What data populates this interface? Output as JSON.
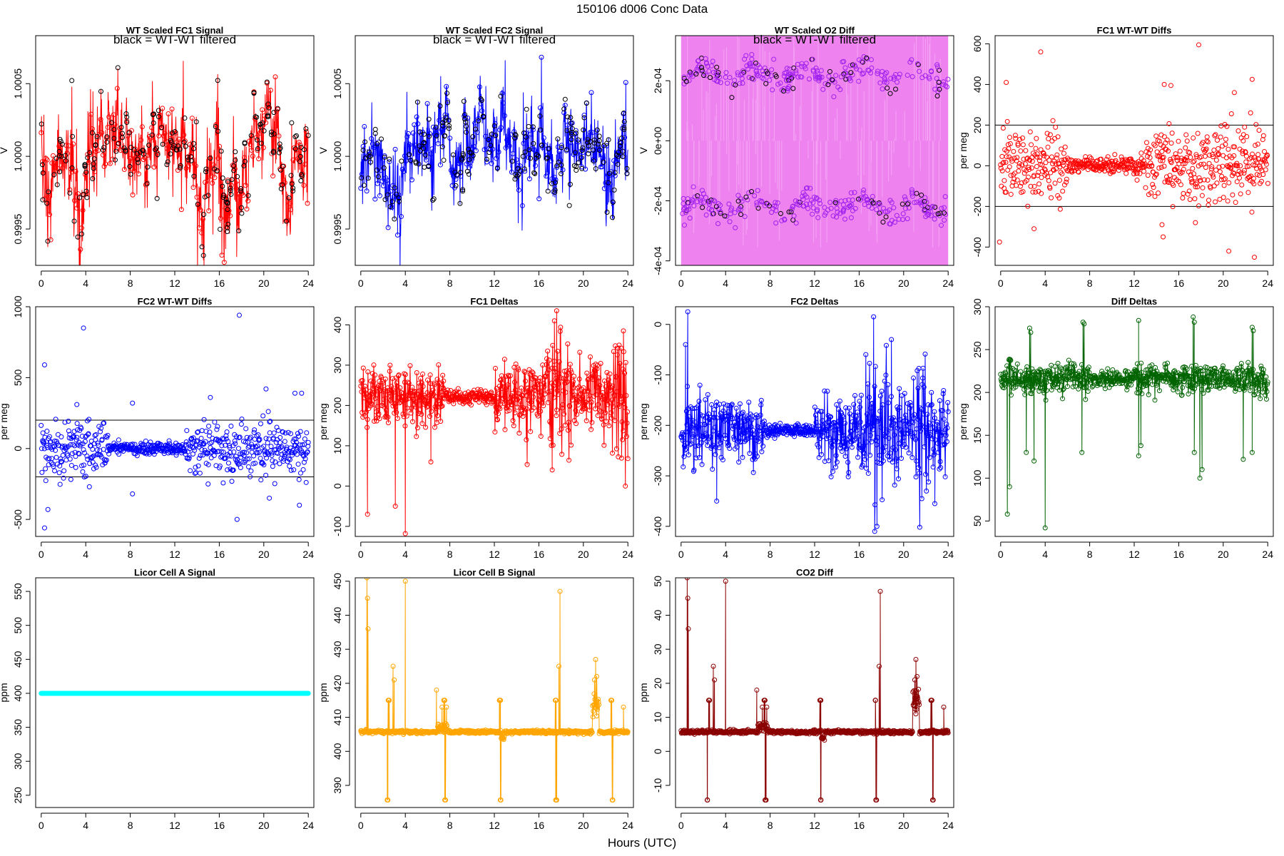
{
  "figure": {
    "suptitle": "150106   d006   Conc Data",
    "xlabel": "Hours (UTC)"
  },
  "chart_data": [
    {
      "id": "p1",
      "type": "line",
      "title": "WT Scaled FC1 Signal",
      "ylabel": "V",
      "annotation": "black = WT-WT filtered",
      "xlim": [
        -0.5,
        24.5
      ],
      "ylim": [
        0.99925,
        1.00083
      ],
      "xticks": [
        0,
        4,
        8,
        12,
        16,
        20,
        24
      ],
      "xtick_labels": [
        "0",
        "4",
        "8",
        "12",
        "16",
        "20",
        "24"
      ],
      "yticks": [
        0.9995,
        1.0,
        1.0005
      ],
      "ytick_labels": [
        "0.9995",
        "1.0000",
        "1.0005"
      ],
      "color": "#ff0000",
      "marker_color": "#000000",
      "series_spec": {
        "kind": "signal",
        "n": 900,
        "base": 1.0001,
        "noise": 0.00011,
        "seed": 11,
        "dips": [
          [
            0.6,
            -0.0003,
            0.4
          ],
          [
            2.7,
            -0.0004,
            0.6
          ],
          [
            3.5,
            -0.0005,
            0.4
          ],
          [
            14.5,
            -0.00045,
            0.4
          ],
          [
            16.6,
            -0.0004,
            0.6
          ],
          [
            17.8,
            -0.0005,
            0.5
          ],
          [
            22.2,
            -0.0003,
            0.5
          ]
        ],
        "markers": 220,
        "marker_stride": 4
      }
    },
    {
      "id": "p2",
      "type": "line",
      "title": "WT Scaled FC2 Signal",
      "ylabel": "V",
      "annotation": "black = WT-WT filtered",
      "xlim": [
        -0.5,
        24.5
      ],
      "ylim": [
        0.99925,
        1.00083
      ],
      "xticks": [
        0,
        4,
        8,
        12,
        16,
        20,
        24
      ],
      "xtick_labels": [
        "0",
        "4",
        "8",
        "12",
        "16",
        "20",
        "24"
      ],
      "yticks": [
        0.9995,
        1.0,
        1.0005
      ],
      "ytick_labels": [
        "0.9995",
        "1.0000",
        "1.0005"
      ],
      "color": "#0000ff",
      "marker_color": "#000000",
      "series_spec": {
        "kind": "signal",
        "n": 900,
        "base": 1.0001,
        "noise": 0.0001,
        "seed": 23,
        "dips": [
          [
            0.4,
            -0.0003,
            0.5
          ],
          [
            2.6,
            -0.0004,
            0.6
          ],
          [
            3.5,
            -0.0005,
            0.4
          ],
          [
            14.2,
            -0.0003,
            0.5
          ],
          [
            17.2,
            -0.0004,
            0.6
          ],
          [
            22.5,
            -0.0003,
            0.4
          ]
        ],
        "markers": 220,
        "marker_stride": 4
      }
    },
    {
      "id": "p3",
      "type": "band",
      "title": "WT Scaled O2 Diff",
      "ylabel": "V",
      "annotation": "black = WT-WT filtered",
      "xlim": [
        -0.5,
        24.5
      ],
      "ylim": [
        -0.000415,
        0.00035
      ],
      "xticks": [
        0,
        4,
        8,
        12,
        16,
        20,
        24
      ],
      "xtick_labels": [
        "0",
        "4",
        "8",
        "12",
        "16",
        "20",
        "24"
      ],
      "yticks": [
        -0.0004,
        -0.0002,
        0.0,
        0.0002
      ],
      "ytick_labels": [
        "-4e-04",
        "-2e-04",
        "0e+00",
        "2e-04"
      ],
      "color": "#ee82ee",
      "marker_color": "#a020f0",
      "series_spec": {
        "kind": "band",
        "upper": 0.00022,
        "lower": -0.00022,
        "spread": 4e-05,
        "seed": 37,
        "markers": 520
      }
    },
    {
      "id": "p4",
      "type": "scatter",
      "title": "FC1 WT-WT Diffs",
      "ylabel": "per meg",
      "xlim": [
        -0.5,
        24.5
      ],
      "ylim": [
        -490,
        640
      ],
      "xticks": [
        0,
        4,
        8,
        12,
        16,
        20,
        24
      ],
      "xtick_labels": [
        "0",
        "4",
        "8",
        "12",
        "16",
        "20",
        "24"
      ],
      "yticks": [
        -400,
        -200,
        0,
        200,
        400,
        600
      ],
      "ytick_labels": [
        "-400",
        "-200",
        "0",
        "200",
        "400",
        "600"
      ],
      "hlines": [
        200,
        -200
      ],
      "color": "#ff0000",
      "series_spec": {
        "kind": "scatter",
        "n": 640,
        "seed": 41,
        "calm": [
          6,
          13
        ],
        "sd_calm": 22,
        "sd_noisy": 85,
        "outliers": [
          [
            0.5,
            410
          ],
          [
            3.6,
            560
          ],
          [
            17.8,
            595
          ],
          [
            14.7,
            400
          ],
          [
            15.3,
            395
          ],
          [
            21.0,
            360
          ],
          [
            22.6,
            425
          ],
          [
            -0.1,
            -375
          ],
          [
            3.0,
            -310
          ],
          [
            14.5,
            -290
          ],
          [
            14.6,
            -350
          ],
          [
            20.5,
            -420
          ],
          [
            22.8,
            -450
          ],
          [
            17.5,
            -280
          ]
        ]
      }
    },
    {
      "id": "p5",
      "type": "scatter",
      "title": "FC2 WT-WT Diffs",
      "ylabel": "per meg",
      "xlim": [
        -0.5,
        24.5
      ],
      "ylim": [
        -620,
        1000
      ],
      "xticks": [
        0,
        4,
        8,
        12,
        16,
        20,
        24
      ],
      "xtick_labels": [
        "0",
        "4",
        "8",
        "12",
        "16",
        "20",
        "24"
      ],
      "yticks": [
        -500,
        0,
        500,
        1000
      ],
      "ytick_labels": [
        "-500",
        "0",
        "500",
        "1000"
      ],
      "hlines": [
        200,
        -200
      ],
      "color": "#0000ff",
      "series_spec": {
        "kind": "scatter",
        "n": 640,
        "seed": 53,
        "calm": [
          6,
          13
        ],
        "sd_calm": 22,
        "sd_noisy": 95,
        "outliers": [
          [
            0.3,
            590
          ],
          [
            3.8,
            850
          ],
          [
            17.8,
            940
          ],
          [
            8.2,
            320
          ],
          [
            3.2,
            310
          ],
          [
            15.2,
            360
          ],
          [
            20.2,
            420
          ],
          [
            22.8,
            390
          ],
          [
            23.4,
            390
          ],
          [
            0.3,
            -560
          ],
          [
            17.6,
            -500
          ],
          [
            0.6,
            -430
          ],
          [
            8.2,
            -320
          ],
          [
            20.5,
            -350
          ],
          [
            23.2,
            -400
          ]
        ]
      }
    },
    {
      "id": "p6",
      "type": "linepoints",
      "title": "FC1 Deltas",
      "ylabel": "per meg",
      "xlim": [
        -0.5,
        24.5
      ],
      "ylim": [
        -125,
        445
      ],
      "xticks": [
        0,
        4,
        8,
        12,
        16,
        20,
        24
      ],
      "xtick_labels": [
        "0",
        "4",
        "8",
        "12",
        "16",
        "20",
        "24"
      ],
      "yticks": [
        -100,
        0,
        100,
        200,
        300,
        400
      ],
      "ytick_labels": [
        "-100",
        "0",
        "100",
        "200",
        "300",
        "400"
      ],
      "color": "#ff0000",
      "series_spec": {
        "kind": "noisy",
        "n": 640,
        "base": 222,
        "seed": 61,
        "calm": [
          7.5,
          12
        ],
        "sd_calm": 8,
        "sd_noisy": 42,
        "sd_very": 75,
        "very": [
          [
            16.5,
            19
          ],
          [
            22.5,
            24
          ]
        ],
        "outliers": [
          [
            4.0,
            -118
          ],
          [
            0.6,
            -70
          ],
          [
            3.1,
            -50
          ],
          [
            6.3,
            60
          ],
          [
            17.6,
            435
          ],
          [
            17.4,
            410
          ],
          [
            23.6,
            385
          ],
          [
            17.2,
            40
          ]
        ]
      }
    },
    {
      "id": "p7",
      "type": "linepoints",
      "title": "FC2 Deltas",
      "ylabel": "per meg",
      "xlim": [
        -0.5,
        24.5
      ],
      "ylim": [
        -420,
        35
      ],
      "xticks": [
        0,
        4,
        8,
        12,
        16,
        20,
        24
      ],
      "xtick_labels": [
        "0",
        "4",
        "8",
        "12",
        "16",
        "20",
        "24"
      ],
      "yticks": [
        -400,
        -300,
        -200,
        -100,
        0
      ],
      "ytick_labels": [
        "-400",
        "-300",
        "-200",
        "-100",
        "0"
      ],
      "color": "#0000ff",
      "series_spec": {
        "kind": "noisy",
        "n": 640,
        "base": -210,
        "seed": 71,
        "calm": [
          7.5,
          12
        ],
        "sd_calm": 7,
        "sd_noisy": 38,
        "sd_very": 70,
        "very": [
          [
            16.5,
            19.5
          ],
          [
            21,
            22
          ]
        ],
        "outliers": [
          [
            0.6,
            25
          ],
          [
            0.4,
            -40
          ],
          [
            17.3,
            15
          ],
          [
            18.9,
            -30
          ],
          [
            17.4,
            -410
          ],
          [
            17.6,
            -400
          ],
          [
            3.2,
            -350
          ],
          [
            22.8,
            -355
          ]
        ]
      }
    },
    {
      "id": "p8",
      "type": "linepoints",
      "title": "Diff Deltas",
      "ylabel": "per meg",
      "xlim": [
        -0.5,
        24.5
      ],
      "ylim": [
        32,
        300
      ],
      "xticks": [
        0,
        4,
        8,
        12,
        16,
        20,
        24
      ],
      "xtick_labels": [
        "0",
        "4",
        "8",
        "12",
        "16",
        "20",
        "24"
      ],
      "yticks": [
        50,
        100,
        150,
        200,
        250,
        300
      ],
      "ytick_labels": [
        "50",
        "100",
        "150",
        "200",
        "250",
        "300"
      ],
      "color": "#006400",
      "series_spec": {
        "kind": "noisy",
        "n": 640,
        "base": 216,
        "seed": 83,
        "calm": [
          8,
          12
        ],
        "sd_calm": 5,
        "sd_noisy": 9,
        "sd_very": 12,
        "very": [],
        "spikes": [
          [
            2.6,
            275
          ],
          [
            2.7,
            270
          ],
          [
            7.4,
            282
          ],
          [
            7.5,
            280
          ],
          [
            12.4,
            284
          ],
          [
            17.3,
            288
          ],
          [
            17.4,
            282
          ],
          [
            22.6,
            276
          ],
          [
            22.7,
            272
          ]
        ],
        "drops": [
          [
            0.6,
            58
          ],
          [
            0.8,
            90
          ],
          [
            2.3,
            130
          ],
          [
            3.0,
            120
          ],
          [
            4.0,
            42
          ],
          [
            7.3,
            130
          ],
          [
            12.4,
            126
          ],
          [
            12.6,
            138
          ],
          [
            17.4,
            130
          ],
          [
            17.9,
            100
          ],
          [
            18.1,
            110
          ],
          [
            21.8,
            122
          ],
          [
            22.6,
            130
          ]
        ]
      }
    },
    {
      "id": "p9",
      "type": "flat",
      "title": "Licor Cell A Signal",
      "ylabel": "ppm",
      "xlim": [
        -0.5,
        24.5
      ],
      "ylim": [
        232,
        570
      ],
      "xticks": [
        0,
        4,
        8,
        12,
        16,
        20,
        24
      ],
      "xtick_labels": [
        "0",
        "4",
        "8",
        "12",
        "16",
        "20",
        "24"
      ],
      "yticks": [
        250,
        300,
        350,
        400,
        450,
        500,
        550
      ],
      "ytick_labels": [
        "250",
        "300",
        "350",
        "400",
        "450",
        "500",
        "550"
      ],
      "color": "#00ffff",
      "series_spec": {
        "kind": "flat",
        "value": 400,
        "n": 400
      }
    },
    {
      "id": "p10",
      "type": "linepoints",
      "title": "Licor Cell B Signal",
      "ylabel": "ppm",
      "xlim": [
        -0.5,
        24.5
      ],
      "ylim": [
        383.5,
        451
      ],
      "xticks": [
        0,
        4,
        8,
        12,
        16,
        20,
        24
      ],
      "xtick_labels": [
        "0",
        "4",
        "8",
        "12",
        "16",
        "20",
        "24"
      ],
      "yticks": [
        390,
        400,
        410,
        420,
        430,
        440,
        450
      ],
      "ytick_labels": [
        "390",
        "400",
        "410",
        "420",
        "430",
        "440",
        "450"
      ],
      "color": "#ffa500",
      "series_spec": {
        "kind": "licor",
        "n": 720,
        "base": 405.7,
        "seed": 97,
        "spikes": [
          [
            0.55,
            451
          ],
          [
            0.6,
            445
          ],
          [
            0.65,
            436
          ],
          [
            2.9,
            425
          ],
          [
            3.0,
            421
          ],
          [
            4.0,
            450
          ],
          [
            6.8,
            418
          ],
          [
            7.3,
            413
          ],
          [
            7.7,
            413
          ],
          [
            17.9,
            447
          ],
          [
            17.8,
            425
          ],
          [
            21.0,
            421
          ],
          [
            21.1,
            427
          ],
          [
            21.2,
            422
          ],
          [
            23.6,
            413
          ]
        ],
        "clusters": [
          [
            2.5,
            415
          ],
          [
            2.4,
            385.7
          ],
          [
            7.5,
            415
          ],
          [
            7.6,
            385.7
          ],
          [
            12.5,
            415
          ],
          [
            12.55,
            385.7
          ],
          [
            17.5,
            415
          ],
          [
            17.55,
            385.7
          ],
          [
            22.5,
            415
          ],
          [
            22.6,
            385.7
          ]
        ],
        "bump": [
          20.8,
          21.4,
          414
        ]
      }
    },
    {
      "id": "p11",
      "type": "linepoints",
      "title": "CO2 Diff",
      "ylabel": "ppm",
      "xlim": [
        -0.5,
        24.5
      ],
      "ylim": [
        -16.5,
        51
      ],
      "xticks": [
        0,
        4,
        8,
        12,
        16,
        20,
        24
      ],
      "xtick_labels": [
        "0",
        "4",
        "8",
        "12",
        "16",
        "20",
        "24"
      ],
      "yticks": [
        -10,
        0,
        10,
        20,
        30,
        40,
        50
      ],
      "ytick_labels": [
        "-10",
        "0",
        "10",
        "20",
        "30",
        "40",
        "50"
      ],
      "color": "#8b0000",
      "series_spec": {
        "kind": "licor",
        "n": 720,
        "base": 5.7,
        "seed": 107,
        "spikes": [
          [
            0.55,
            51
          ],
          [
            0.6,
            45
          ],
          [
            0.65,
            36
          ],
          [
            2.9,
            25
          ],
          [
            3.0,
            21
          ],
          [
            4.0,
            50
          ],
          [
            6.8,
            18
          ],
          [
            7.3,
            13
          ],
          [
            7.7,
            13
          ],
          [
            17.9,
            47
          ],
          [
            17.8,
            25
          ],
          [
            21.0,
            21
          ],
          [
            21.1,
            27
          ],
          [
            21.2,
            22
          ],
          [
            23.6,
            13
          ]
        ],
        "clusters": [
          [
            2.5,
            15
          ],
          [
            2.4,
            -14.3
          ],
          [
            7.5,
            15
          ],
          [
            7.6,
            -14.3
          ],
          [
            12.5,
            15
          ],
          [
            12.55,
            -14.3
          ],
          [
            17.5,
            15
          ],
          [
            17.55,
            -14.3
          ],
          [
            22.5,
            15
          ],
          [
            22.6,
            -14.3
          ]
        ],
        "bump": [
          20.8,
          21.4,
          14
        ]
      }
    }
  ]
}
